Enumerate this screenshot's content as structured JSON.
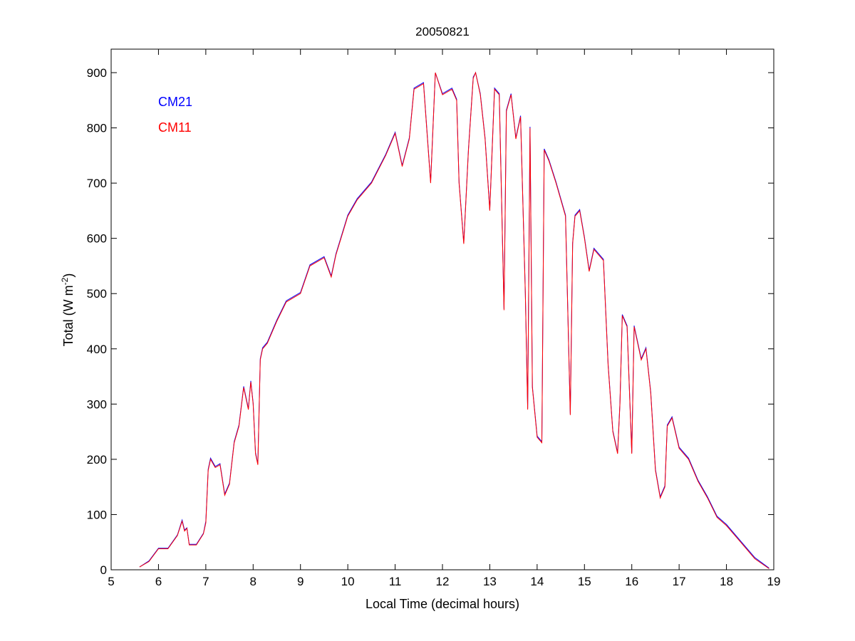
{
  "chart_data": {
    "type": "line",
    "title": "20050821",
    "xlabel": "Local Time (decimal hours)",
    "ylabel_main": "Total (W m",
    "ylabel_sup": "-2",
    "ylabel_close": ")",
    "xlim": [
      5,
      19
    ],
    "ylim": [
      0,
      900
    ],
    "xticks": [
      5,
      6,
      7,
      8,
      9,
      10,
      11,
      12,
      13,
      14,
      15,
      16,
      17,
      18,
      19
    ],
    "yticks": [
      0,
      100,
      200,
      300,
      400,
      500,
      600,
      700,
      800,
      900
    ],
    "grid": false,
    "legend_placement": "top-left",
    "x": [
      5.6,
      5.8,
      6.0,
      6.2,
      6.4,
      6.5,
      6.55,
      6.6,
      6.65,
      6.8,
      6.95,
      7.0,
      7.05,
      7.1,
      7.2,
      7.3,
      7.4,
      7.5,
      7.6,
      7.7,
      7.8,
      7.9,
      7.95,
      8.0,
      8.05,
      8.1,
      8.15,
      8.2,
      8.3,
      8.5,
      8.7,
      9.0,
      9.2,
      9.5,
      9.65,
      9.75,
      10.0,
      10.2,
      10.5,
      10.8,
      11.0,
      11.15,
      11.3,
      11.4,
      11.6,
      11.75,
      11.85,
      12.0,
      12.2,
      12.3,
      12.35,
      12.45,
      12.55,
      12.65,
      12.7,
      12.8,
      12.9,
      13.0,
      13.1,
      13.2,
      13.3,
      13.35,
      13.45,
      13.55,
      13.65,
      13.75,
      13.8,
      13.85,
      13.9,
      14.0,
      14.1,
      14.15,
      14.25,
      14.4,
      14.6,
      14.7,
      14.75,
      14.8,
      14.9,
      15.0,
      15.1,
      15.2,
      15.4,
      15.5,
      15.6,
      15.7,
      15.75,
      15.8,
      15.9,
      16.0,
      16.05,
      16.2,
      16.3,
      16.4,
      16.5,
      16.6,
      16.7,
      16.75,
      16.85,
      17.0,
      17.2,
      17.4,
      17.6,
      17.8,
      18.0,
      18.3,
      18.6,
      18.9
    ],
    "series": [
      {
        "name": "CM21",
        "color": "#0000ff",
        "values": [
          5,
          16,
          39,
          39,
          63,
          90,
          72,
          76,
          46,
          46,
          66,
          88,
          182,
          202,
          187,
          192,
          137,
          157,
          232,
          262,
          332,
          292,
          342,
          302,
          212,
          192,
          382,
          402,
          412,
          452,
          487,
          502,
          552,
          567,
          532,
          572,
          642,
          672,
          702,
          752,
          792,
          732,
          782,
          872,
          882,
          702,
          900,
          862,
          872,
          852,
          702,
          592,
          762,
          892,
          900,
          862,
          782,
          652,
          872,
          862,
          472,
          832,
          862,
          782,
          822,
          502,
          292,
          802,
          332,
          242,
          232,
          762,
          742,
          702,
          642,
          282,
          592,
          642,
          652,
          602,
          542,
          582,
          562,
          372,
          252,
          212,
          302,
          462,
          442,
          212,
          442,
          382,
          402,
          322,
          182,
          132,
          152,
          262,
          277,
          222,
          202,
          162,
          132,
          97,
          82,
          52,
          22,
          3
        ]
      },
      {
        "name": "CM11",
        "color": "#ff0000",
        "values": [
          5,
          15,
          38,
          38,
          62,
          88,
          70,
          75,
          45,
          45,
          65,
          85,
          180,
          200,
          185,
          190,
          135,
          155,
          230,
          260,
          330,
          290,
          340,
          300,
          210,
          190,
          380,
          400,
          410,
          450,
          485,
          500,
          550,
          565,
          530,
          570,
          640,
          670,
          700,
          750,
          790,
          730,
          780,
          870,
          880,
          700,
          900,
          860,
          870,
          850,
          700,
          590,
          760,
          890,
          900,
          860,
          780,
          650,
          870,
          860,
          470,
          830,
          860,
          780,
          820,
          500,
          290,
          800,
          330,
          240,
          230,
          760,
          740,
          700,
          640,
          280,
          590,
          640,
          650,
          600,
          540,
          580,
          560,
          370,
          250,
          210,
          300,
          460,
          440,
          210,
          440,
          380,
          400,
          320,
          180,
          130,
          150,
          260,
          275,
          220,
          200,
          160,
          130,
          95,
          80,
          50,
          20,
          2
        ]
      }
    ]
  }
}
